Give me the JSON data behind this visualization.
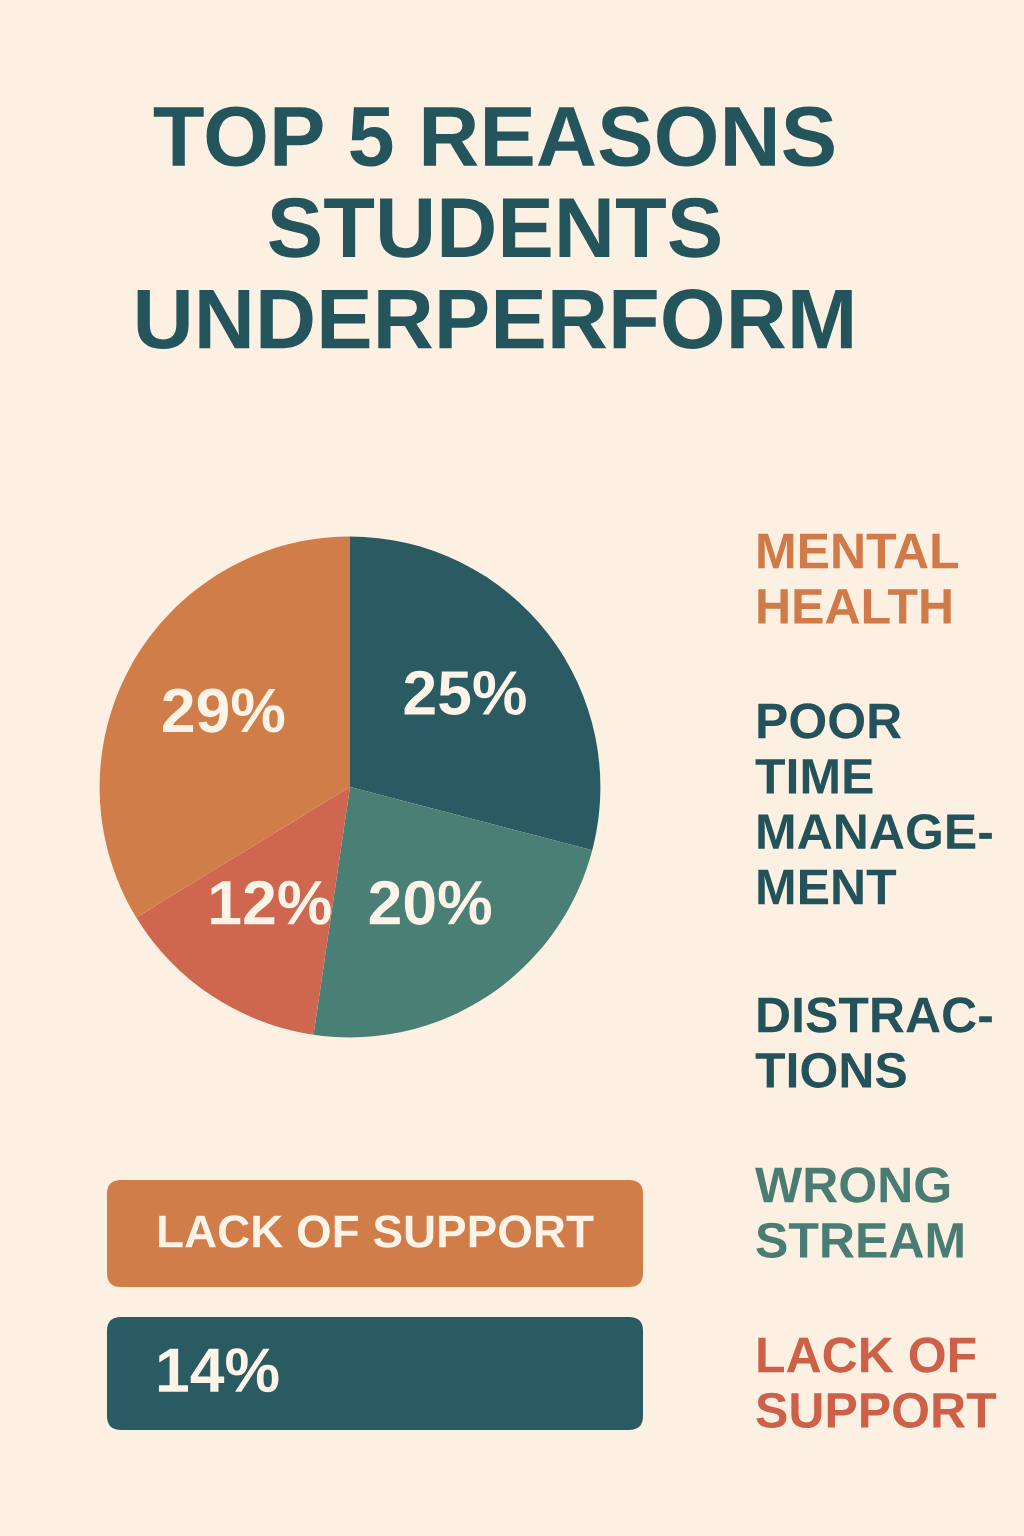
{
  "chart_data": [
    {
      "type": "pie",
      "title": "TOP 5 REASONS\nSTUDENTS\nUNDERPERFORM",
      "categories": [
        null,
        null,
        null,
        null
      ],
      "values": [
        25,
        20,
        12,
        29
      ],
      "colors": [
        "#2b5b62",
        "#4a7f76",
        "#cf6650",
        "#d17d4a"
      ],
      "value_labels": [
        "25%",
        "20%",
        "12%",
        "29%"
      ]
    },
    {
      "type": "other",
      "categories": [
        "MENTAL\nHEALTH",
        "POOR\nTIME\nMANAGE-\nMENT",
        "DISTRAC-\nTIONS",
        "WRONG\nSTREAM",
        "LACK OF\nSUPPORT"
      ],
      "colors": [
        "#cf7a48",
        "#24525a",
        "#24525a",
        "#4a7c73",
        "#cc6048"
      ]
    },
    {
      "type": "other",
      "annotations": [
        "LACK OF SUPPORT",
        "14%"
      ],
      "colors": [
        "#d17d4a",
        "#2b5b62"
      ]
    }
  ]
}
